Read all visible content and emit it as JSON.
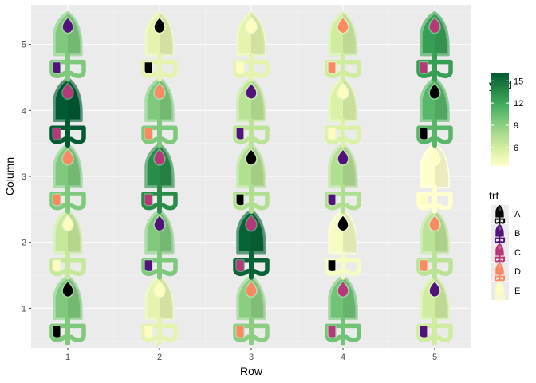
{
  "chart_data": {
    "type": "scatter",
    "xlabel": "Row",
    "ylabel": "Column",
    "xlim": [
      0.6,
      5.4
    ],
    "ylim": [
      0.4,
      5.6
    ],
    "x_ticks": [
      "1",
      "2",
      "3",
      "4",
      "5"
    ],
    "y_ticks": [
      "1",
      "2",
      "3",
      "4",
      "5"
    ],
    "grid": true,
    "legend_placement": "right",
    "legend_fill": {
      "title": "yield",
      "ticks": [
        "6",
        "9",
        "12",
        "15"
      ],
      "tick_values": [
        6,
        9,
        12,
        15
      ],
      "range": [
        3.5,
        16
      ],
      "colors": [
        "#ffffcc",
        "#d9f0a3",
        "#addd8e",
        "#78c679",
        "#41ab5d",
        "#238443",
        "#005a32"
      ]
    },
    "legend_trt": {
      "title": "trt",
      "levels": [
        "A",
        "B",
        "C",
        "D",
        "E"
      ],
      "colors": {
        "A": "#000000",
        "B": "#51127c",
        "C": "#b73779",
        "D": "#fc8961",
        "E": "#fcfdbf"
      }
    },
    "points": [
      {
        "row": 1,
        "col": 1,
        "yield": 9.5,
        "trt": "A"
      },
      {
        "row": 2,
        "col": 1,
        "yield": 5.0,
        "trt": "E"
      },
      {
        "row": 3,
        "col": 1,
        "yield": 9.0,
        "trt": "D"
      },
      {
        "row": 4,
        "col": 1,
        "yield": 10.0,
        "trt": "C"
      },
      {
        "row": 5,
        "col": 1,
        "yield": 6.0,
        "trt": "B"
      },
      {
        "row": 1,
        "col": 2,
        "yield": 6.5,
        "trt": "E"
      },
      {
        "row": 2,
        "col": 2,
        "yield": 9.5,
        "trt": "B"
      },
      {
        "row": 3,
        "col": 2,
        "yield": 15.5,
        "trt": "C"
      },
      {
        "row": 4,
        "col": 2,
        "yield": 4.0,
        "trt": "A"
      },
      {
        "row": 5,
        "col": 2,
        "yield": 7.0,
        "trt": "D"
      },
      {
        "row": 1,
        "col": 3,
        "yield": 9.5,
        "trt": "D"
      },
      {
        "row": 2,
        "col": 3,
        "yield": 13.5,
        "trt": "C"
      },
      {
        "row": 3,
        "col": 3,
        "yield": 7.5,
        "trt": "A"
      },
      {
        "row": 4,
        "col": 3,
        "yield": 7.5,
        "trt": "B"
      },
      {
        "row": 5,
        "col": 3,
        "yield": 3.5,
        "trt": "E"
      },
      {
        "row": 1,
        "col": 4,
        "yield": 16.0,
        "trt": "C"
      },
      {
        "row": 2,
        "col": 4,
        "yield": 9.5,
        "trt": "D"
      },
      {
        "row": 3,
        "col": 4,
        "yield": 7.0,
        "trt": "B"
      },
      {
        "row": 4,
        "col": 4,
        "yield": 5.5,
        "trt": "E"
      },
      {
        "row": 5,
        "col": 4,
        "yield": 11.0,
        "trt": "A"
      },
      {
        "row": 1,
        "col": 5,
        "yield": 9.5,
        "trt": "B"
      },
      {
        "row": 2,
        "col": 5,
        "yield": 5.0,
        "trt": "A"
      },
      {
        "row": 3,
        "col": 5,
        "yield": 5.0,
        "trt": "E"
      },
      {
        "row": 4,
        "col": 5,
        "yield": 6.0,
        "trt": "D"
      },
      {
        "row": 5,
        "col": 5,
        "yield": 12.5,
        "trt": "C"
      }
    ]
  }
}
